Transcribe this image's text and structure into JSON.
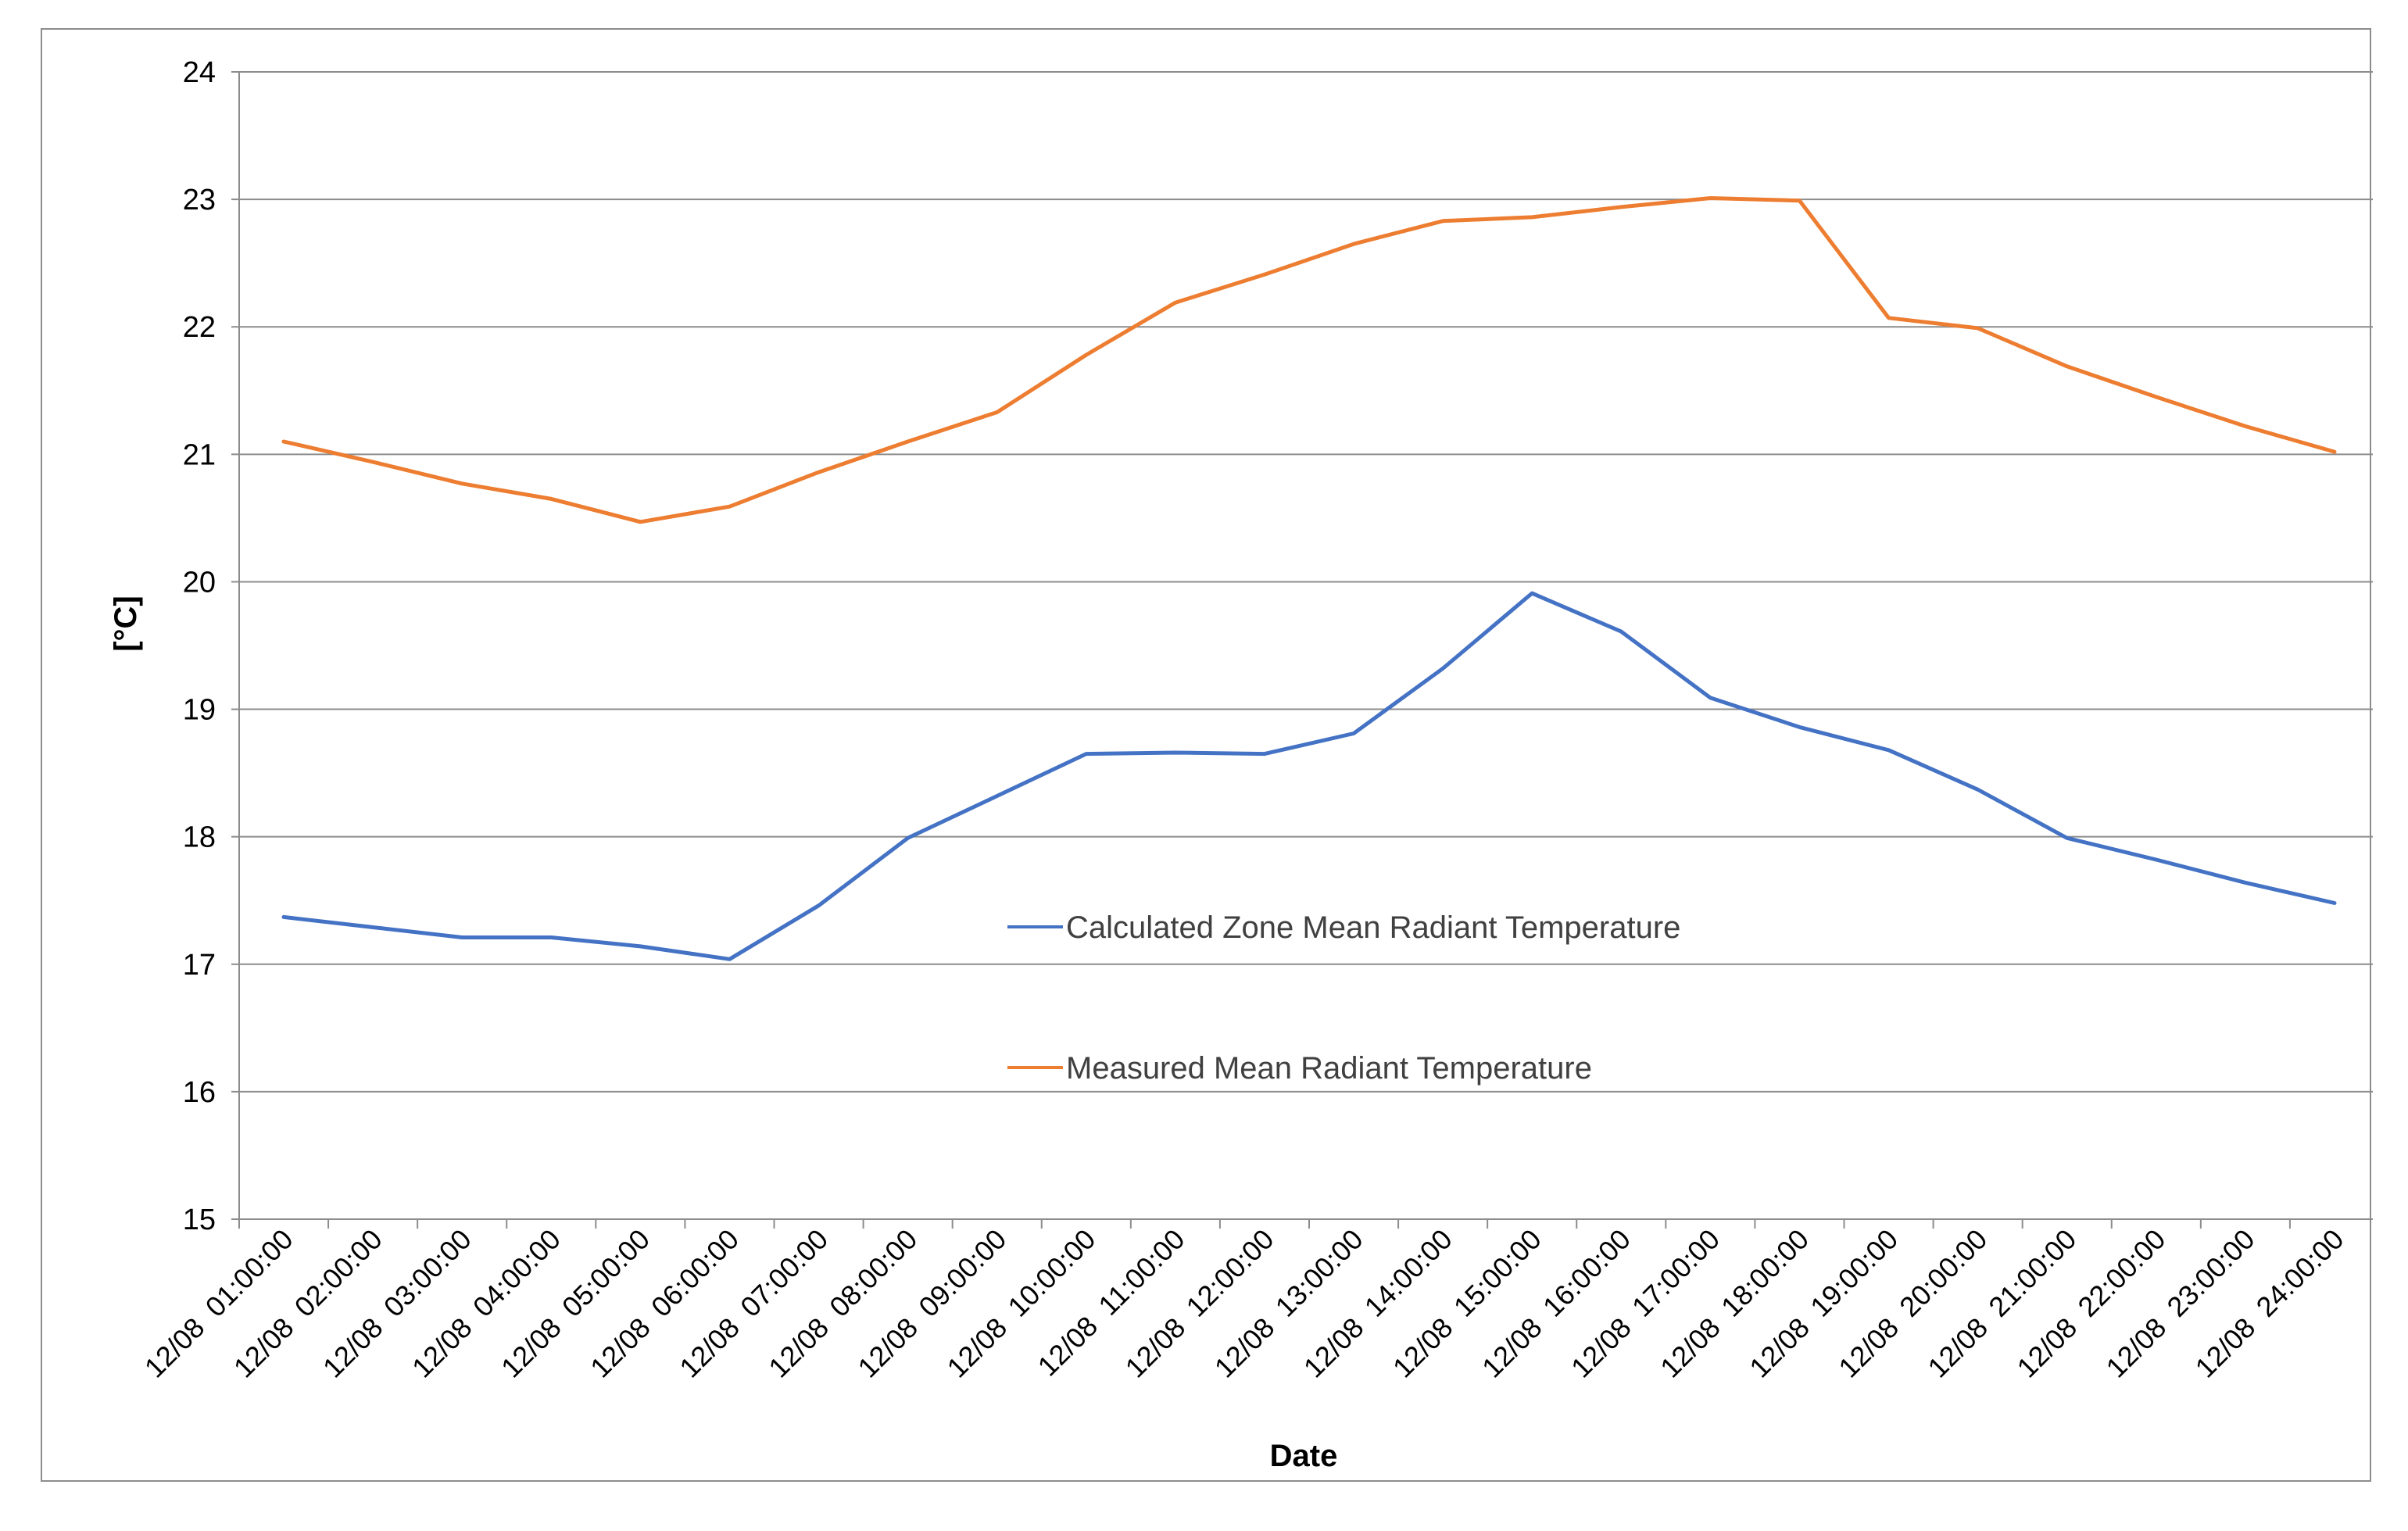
{
  "chart_data": {
    "type": "line",
    "title": "",
    "xlabel": "Date",
    "ylabel": "[°C]",
    "ylim": [
      15,
      24
    ],
    "ytick_step": 1,
    "grid": true,
    "legend_position": "center",
    "categories": [
      "12/08  01:00:00",
      "12/08  02:00:00",
      "12/08  03:00:00",
      "12/08  04:00:00",
      "12/08  05:00:00",
      "12/08  06:00:00",
      "12/08  07:00:00",
      "12/08  08:00:00",
      "12/08  09:00:00",
      "12/08  10:00:00",
      "12/08  11:00:00",
      "12/08  12:00:00",
      "12/08  13:00:00",
      "12/08  14:00:00",
      "12/08  15:00:00",
      "12/08  16:00:00",
      "12/08  17:00:00",
      "12/08  18:00:00",
      "12/08  19:00:00",
      "12/08  20:00:00",
      "12/08  21:00:00",
      "12/08  22:00:00",
      "12/08  23:00:00",
      "12/08  24:00:00"
    ],
    "series": [
      {
        "name": "Calculated Zone Mean Radiant Temperature",
        "color": "#4472C4",
        "values": [
          17.37,
          17.29,
          17.21,
          17.21,
          17.14,
          17.04,
          17.46,
          17.99,
          18.32,
          18.65,
          18.66,
          18.65,
          18.81,
          19.32,
          19.91,
          19.61,
          19.09,
          18.86,
          18.68,
          18.37,
          17.99,
          17.82,
          17.64,
          17.48
        ]
      },
      {
        "name": "Measured Mean Radiant Temperature",
        "color": "#ED7D31",
        "values": [
          21.1,
          20.94,
          20.77,
          20.65,
          20.47,
          20.59,
          20.86,
          21.1,
          21.33,
          21.78,
          22.19,
          22.41,
          22.65,
          22.83,
          22.86,
          22.94,
          23.01,
          22.99,
          22.07,
          21.99,
          21.69,
          21.45,
          21.22,
          21.02
        ]
      }
    ]
  }
}
